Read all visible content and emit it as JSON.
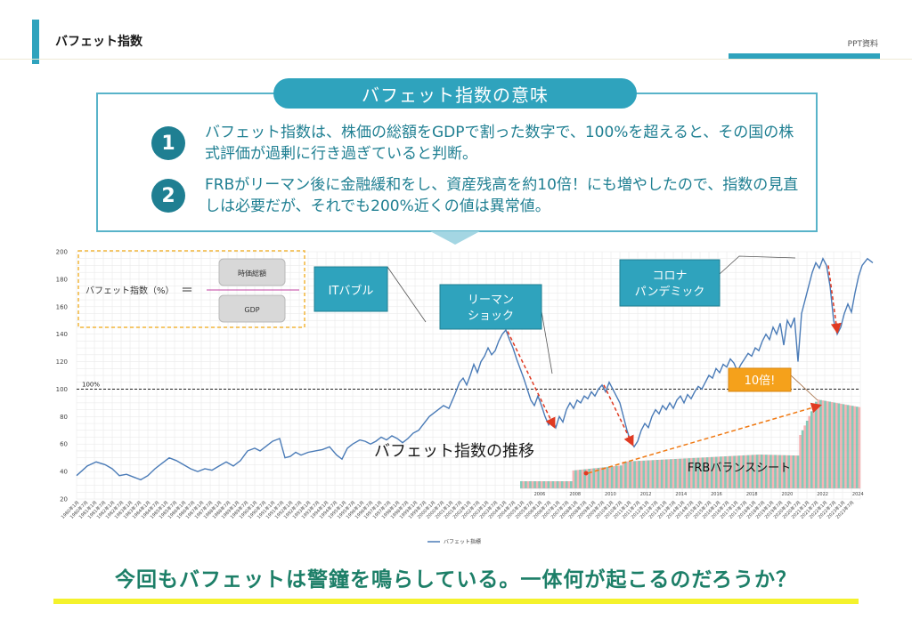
{
  "header": {
    "title": "バフェット指数",
    "right_label": "PPT資料"
  },
  "meaning": {
    "title": "バフェット指数の意味",
    "points": [
      {
        "num": "1",
        "text": "バフェット指数は、株価の総額をGDPで割った数字で、100%を超えると、その国の株式評価が過剰に行き過ぎていると判断。"
      },
      {
        "num": "2",
        "text": "FRBがリーマン後に金融緩和をし、資産残高を約10倍！にも増やしたので、指数の見直しは必要だが、それでも200%近くの値は異常値。"
      }
    ]
  },
  "chart_data": {
    "type": "line",
    "ylim": [
      20,
      200
    ],
    "yticks": [
      20,
      40,
      60,
      80,
      100,
      120,
      140,
      160,
      180,
      200
    ],
    "xlim": [
      1980,
      2024
    ],
    "reference_line": {
      "value": 100,
      "label": "100%"
    },
    "legend": {
      "label": "バフェット指標",
      "position": "bottom"
    },
    "series": [
      {
        "name": "バフェット指標",
        "color": "#4a7bb7",
        "points": [
          [
            1980,
            37
          ],
          [
            1980.6,
            44
          ],
          [
            1981.1,
            47
          ],
          [
            1981.6,
            45
          ],
          [
            1982,
            42
          ],
          [
            1982.4,
            37
          ],
          [
            1982.8,
            38
          ],
          [
            1983.2,
            36
          ],
          [
            1983.6,
            34
          ],
          [
            1984,
            37
          ],
          [
            1984.4,
            42
          ],
          [
            1984.8,
            46
          ],
          [
            1985.2,
            50
          ],
          [
            1985.6,
            48
          ],
          [
            1986,
            45
          ],
          [
            1986.4,
            42
          ],
          [
            1986.8,
            40
          ],
          [
            1987.2,
            42
          ],
          [
            1987.6,
            41
          ],
          [
            1988,
            44
          ],
          [
            1988.4,
            47
          ],
          [
            1988.8,
            44
          ],
          [
            1989.2,
            48
          ],
          [
            1989.6,
            55
          ],
          [
            1990,
            57
          ],
          [
            1990.3,
            55
          ],
          [
            1990.6,
            58
          ],
          [
            1991,
            62
          ],
          [
            1991.4,
            64
          ],
          [
            1991.7,
            50
          ],
          [
            1992,
            51
          ],
          [
            1992.3,
            54
          ],
          [
            1992.6,
            52
          ],
          [
            1993,
            54
          ],
          [
            1993.4,
            55
          ],
          [
            1993.8,
            56
          ],
          [
            1994.2,
            58
          ],
          [
            1994.6,
            52
          ],
          [
            1994.9,
            49
          ],
          [
            1995.2,
            57
          ],
          [
            1995.5,
            60
          ],
          [
            1995.9,
            63
          ],
          [
            1996.2,
            62
          ],
          [
            1996.5,
            60
          ],
          [
            1996.8,
            62
          ],
          [
            1997.1,
            65
          ],
          [
            1997.4,
            63
          ],
          [
            1997.7,
            66
          ],
          [
            1998,
            64
          ],
          [
            1998.3,
            61
          ],
          [
            1998.6,
            64
          ],
          [
            1998.9,
            68
          ],
          [
            1999.2,
            70
          ],
          [
            1999.5,
            75
          ],
          [
            1999.8,
            80
          ],
          [
            2000,
            82
          ],
          [
            2000.3,
            85
          ],
          [
            2000.6,
            88
          ],
          [
            2000.9,
            86
          ],
          [
            2001.2,
            95
          ],
          [
            2001.5,
            105
          ],
          [
            2001.7,
            108
          ],
          [
            2001.9,
            103
          ],
          [
            2002.1,
            110
          ],
          [
            2002.3,
            118
          ],
          [
            2002.5,
            112
          ],
          [
            2002.7,
            120
          ],
          [
            2002.9,
            124
          ],
          [
            2003.1,
            130
          ],
          [
            2003.3,
            125
          ],
          [
            2003.5,
            128
          ],
          [
            2003.7,
            135
          ],
          [
            2003.9,
            140
          ],
          [
            2004.1,
            143
          ],
          [
            2004.3,
            136
          ],
          [
            2004.5,
            130
          ],
          [
            2004.7,
            122
          ],
          [
            2004.9,
            115
          ],
          [
            2005.1,
            108
          ],
          [
            2005.3,
            100
          ],
          [
            2005.5,
            92
          ],
          [
            2005.7,
            88
          ],
          [
            2005.9,
            95
          ],
          [
            2006.1,
            88
          ],
          [
            2006.3,
            80
          ],
          [
            2006.5,
            74
          ],
          [
            2006.7,
            78
          ],
          [
            2006.9,
            72
          ],
          [
            2007.1,
            80
          ],
          [
            2007.3,
            76
          ],
          [
            2007.5,
            85
          ],
          [
            2007.7,
            90
          ],
          [
            2007.9,
            86
          ],
          [
            2008.1,
            92
          ],
          [
            2008.3,
            90
          ],
          [
            2008.5,
            95
          ],
          [
            2008.7,
            93
          ],
          [
            2008.9,
            98
          ],
          [
            2009.1,
            95
          ],
          [
            2009.3,
            100
          ],
          [
            2009.5,
            103
          ],
          [
            2009.7,
            98
          ],
          [
            2009.9,
            105
          ],
          [
            2010.1,
            100
          ],
          [
            2010.3,
            95
          ],
          [
            2010.5,
            90
          ],
          [
            2010.7,
            80
          ],
          [
            2010.9,
            70
          ],
          [
            2011.1,
            62
          ],
          [
            2011.3,
            58
          ],
          [
            2011.5,
            62
          ],
          [
            2011.7,
            70
          ],
          [
            2011.9,
            75
          ],
          [
            2012.1,
            72
          ],
          [
            2012.3,
            80
          ],
          [
            2012.5,
            85
          ],
          [
            2012.7,
            82
          ],
          [
            2012.9,
            88
          ],
          [
            2013.1,
            85
          ],
          [
            2013.3,
            90
          ],
          [
            2013.5,
            86
          ],
          [
            2013.7,
            92
          ],
          [
            2013.9,
            95
          ],
          [
            2014.1,
            90
          ],
          [
            2014.3,
            96
          ],
          [
            2014.5,
            93
          ],
          [
            2014.7,
            98
          ],
          [
            2014.9,
            102
          ],
          [
            2015.1,
            100
          ],
          [
            2015.3,
            105
          ],
          [
            2015.5,
            110
          ],
          [
            2015.7,
            108
          ],
          [
            2015.9,
            115
          ],
          [
            2016.1,
            112
          ],
          [
            2016.3,
            118
          ],
          [
            2016.5,
            116
          ],
          [
            2016.7,
            122
          ],
          [
            2016.9,
            119
          ],
          [
            2017.1,
            113
          ],
          [
            2017.3,
            118
          ],
          [
            2017.5,
            122
          ],
          [
            2017.7,
            126
          ],
          [
            2017.9,
            124
          ],
          [
            2018.1,
            130
          ],
          [
            2018.3,
            128
          ],
          [
            2018.5,
            135
          ],
          [
            2018.7,
            140
          ],
          [
            2018.9,
            136
          ],
          [
            2019.1,
            145
          ],
          [
            2019.3,
            140
          ],
          [
            2019.5,
            148
          ],
          [
            2019.7,
            132
          ],
          [
            2019.9,
            150
          ],
          [
            2020.1,
            145
          ],
          [
            2020.3,
            152
          ],
          [
            2020.5,
            120
          ],
          [
            2020.7,
            155
          ],
          [
            2020.9,
            165
          ],
          [
            2021.1,
            175
          ],
          [
            2021.3,
            185
          ],
          [
            2021.5,
            192
          ],
          [
            2021.7,
            188
          ],
          [
            2021.9,
            195
          ],
          [
            2022.1,
            190
          ],
          [
            2022.3,
            175
          ],
          [
            2022.5,
            150
          ],
          [
            2022.7,
            140
          ],
          [
            2022.9,
            145
          ],
          [
            2023.1,
            155
          ],
          [
            2023.3,
            162
          ],
          [
            2023.5,
            156
          ],
          [
            2023.7,
            170
          ],
          [
            2023.9,
            182
          ],
          [
            2024.1,
            190
          ],
          [
            2024.4,
            195
          ],
          [
            2024.7,
            192
          ]
        ]
      }
    ],
    "annotations": [
      {
        "label": "ITバブル"
      },
      {
        "label": "リーマン\nショック"
      },
      {
        "label": "コロナ\nパンデミック"
      },
      {
        "label": "10倍!"
      }
    ],
    "formula": {
      "lhs": "バフェット指数（%）",
      "eq": "＝",
      "numerator": "時価総額",
      "denominator": "GDP"
    },
    "chart_label": "バフェット指数の推移",
    "inset": {
      "title": "FRBバランスシート",
      "x_labels": [
        "2006",
        "2008",
        "2010",
        "2012",
        "2014",
        "2016",
        "2018",
        "2020",
        "2022",
        "2024"
      ]
    },
    "colors": {
      "line": "#4a7bb7",
      "arrow": "#e03a22",
      "callout_bg": "#2fa3bd",
      "ten_times_bg": "#f5a11b",
      "inset_teal": "#6fc2ad",
      "inset_pink": "#f4a7a9"
    }
  },
  "conclusion": "今回もバフェットは警鐘を鳴らしている。一体何が起こるのだろうか？"
}
